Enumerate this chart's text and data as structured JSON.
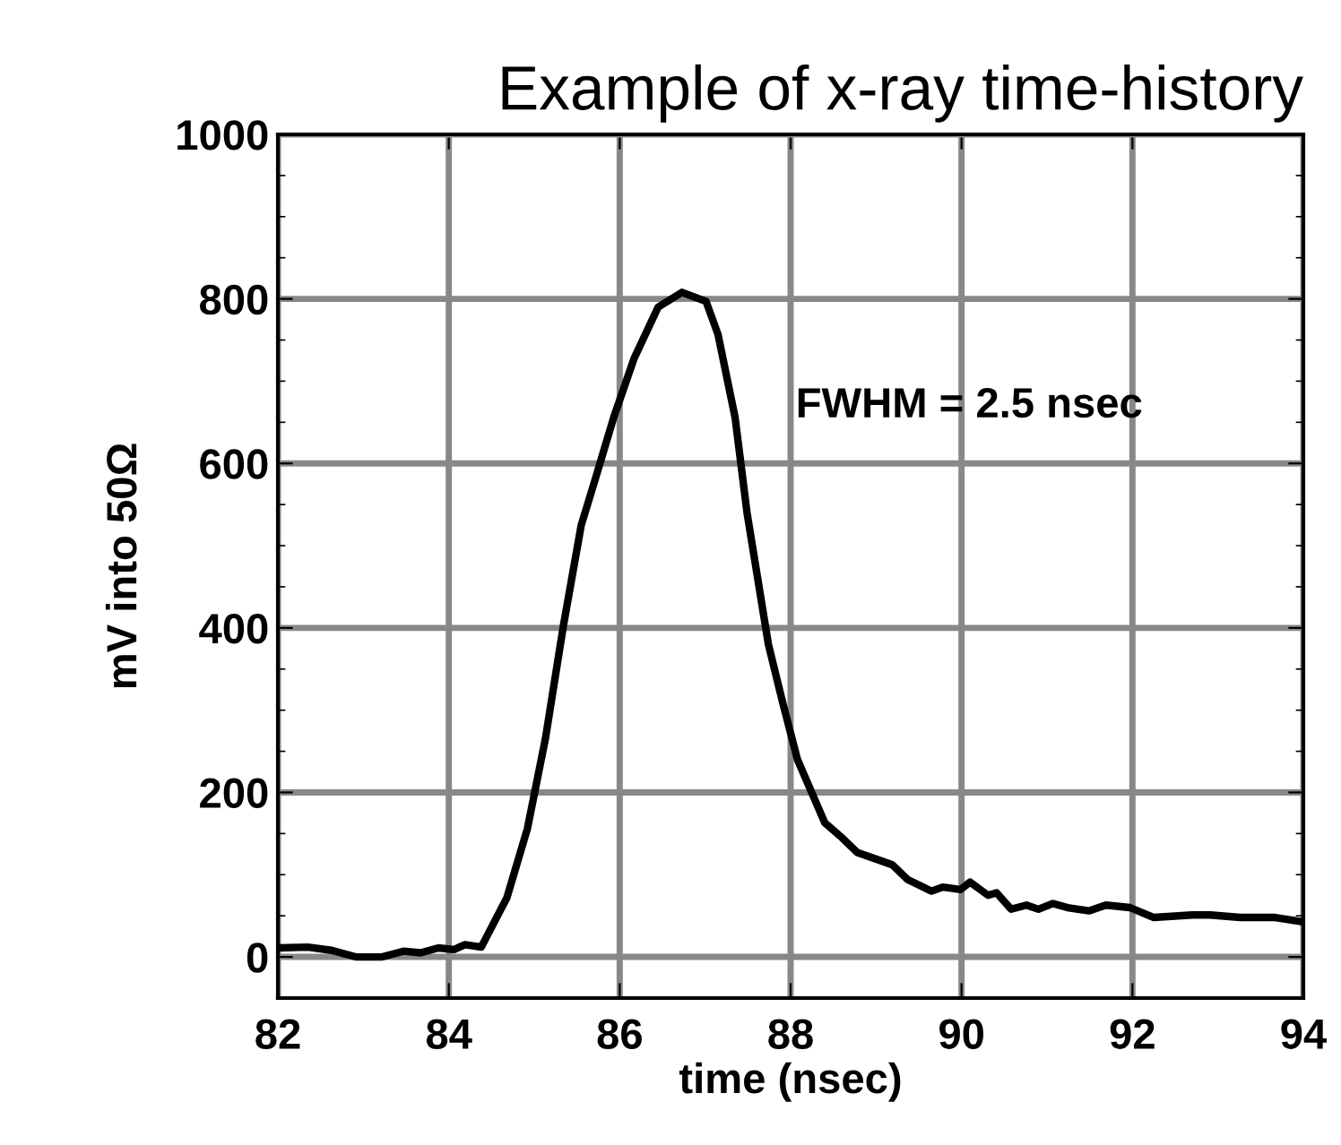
{
  "chart_data": {
    "type": "line",
    "title": "Example of x-ray time-history",
    "xlabel": "time (nsec)",
    "ylabel": "mV into 50Ω",
    "annotations": [
      "FWHM = 2.5 nsec"
    ],
    "xlim": [
      82,
      94
    ],
    "xticks": [
      82,
      84,
      86,
      88,
      90,
      92,
      94
    ],
    "ylim": [
      -50,
      1000
    ],
    "yticks": [
      0,
      200,
      400,
      600,
      800,
      1000
    ],
    "grid": true,
    "legend": false,
    "marker": "none",
    "line_style": "solid",
    "series": [
      {
        "color": "#000000",
        "x": [
          82,
          82.35,
          82.63,
          82.91,
          83.22,
          83.47,
          83.67,
          83.88,
          84.06,
          84.19,
          84.38,
          84.68,
          84.92,
          85.13,
          85.34,
          85.55,
          85.72,
          85.93,
          86.17,
          86.45,
          86.73,
          87.01,
          87.15,
          87.35,
          87.49,
          87.74,
          87.91,
          88.08,
          88.4,
          88.6,
          88.78,
          89.19,
          89.37,
          89.65,
          89.78,
          89.99,
          90.1,
          90.31,
          90.41,
          90.58,
          90.76,
          90.9,
          91.07,
          91.24,
          91.49,
          91.69,
          91.97,
          92.25,
          92.7,
          92.91,
          93.26,
          93.67,
          93.98
        ],
        "values": [
          11,
          12,
          8,
          0,
          0,
          7,
          5,
          11,
          9,
          15,
          12,
          72,
          156,
          265,
          402,
          525,
          583,
          656,
          728,
          790,
          808,
          797,
          757,
          656,
          540,
          380,
          308,
          240,
          163,
          145,
          127,
          112,
          94,
          80,
          85,
          82,
          91,
          75,
          78,
          58,
          63,
          58,
          65,
          60,
          56,
          63,
          60,
          48,
          51,
          51,
          48,
          48,
          43
        ]
      }
    ]
  }
}
